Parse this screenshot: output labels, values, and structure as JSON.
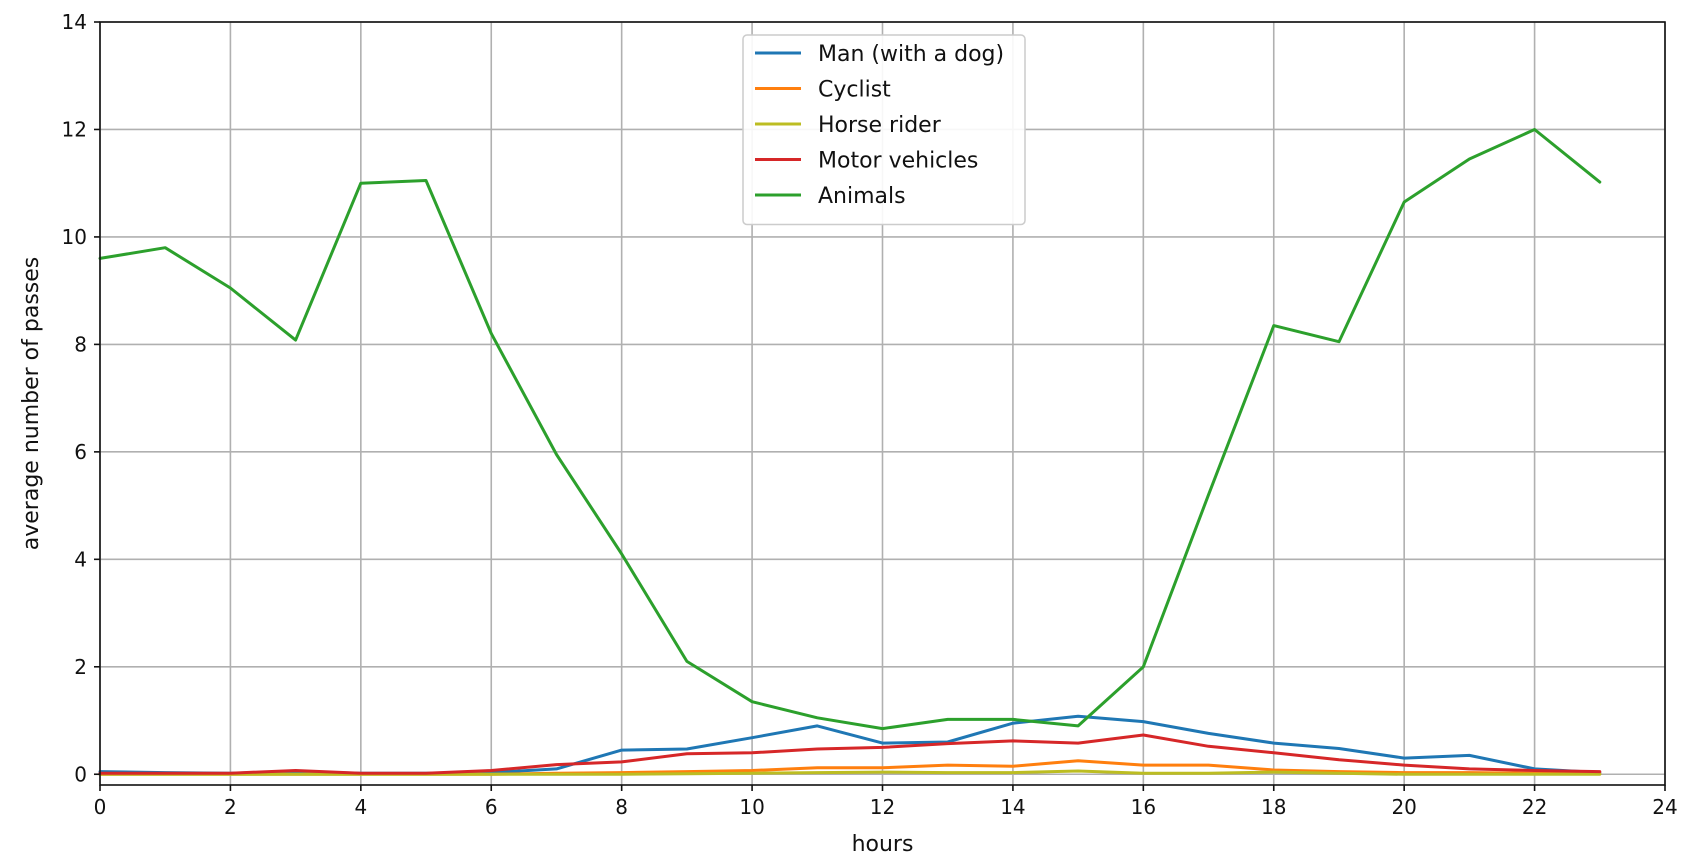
{
  "chart_data": {
    "type": "line",
    "title": "",
    "xlabel": "hours",
    "ylabel": "average number of passes",
    "xlim": [
      0,
      24
    ],
    "ylim": [
      -0.2,
      14
    ],
    "xticks": [
      0,
      2,
      4,
      6,
      8,
      10,
      12,
      14,
      16,
      18,
      20,
      22,
      24
    ],
    "yticks": [
      0,
      2,
      4,
      6,
      8,
      10,
      12,
      14
    ],
    "grid": true,
    "legend_position": "top-center",
    "x": [
      0,
      1,
      2,
      3,
      4,
      5,
      6,
      7,
      8,
      9,
      10,
      11,
      12,
      13,
      14,
      15,
      16,
      17,
      18,
      19,
      20,
      21,
      22,
      23
    ],
    "series": [
      {
        "name": "Man (with a dog)",
        "color": "#1f77b4",
        "values": [
          0.05,
          0.03,
          0.02,
          0.05,
          0.02,
          0.02,
          0.03,
          0.1,
          0.45,
          0.47,
          0.68,
          0.9,
          0.58,
          0.6,
          0.95,
          1.08,
          0.98,
          0.76,
          0.58,
          0.48,
          0.3,
          0.35,
          0.1,
          0.03
        ]
      },
      {
        "name": "Cyclist",
        "color": "#ff7f0e",
        "values": [
          0.0,
          0.0,
          0.0,
          0.0,
          0.0,
          0.0,
          0.0,
          0.02,
          0.03,
          0.05,
          0.07,
          0.12,
          0.12,
          0.17,
          0.15,
          0.25,
          0.17,
          0.17,
          0.08,
          0.05,
          0.03,
          0.03,
          0.02,
          0.01
        ]
      },
      {
        "name": "Horse rider",
        "color": "#bcbd22",
        "values": [
          0.0,
          0.0,
          0.0,
          0.0,
          0.0,
          0.0,
          0.0,
          0.0,
          0.0,
          0.01,
          0.02,
          0.03,
          0.04,
          0.03,
          0.03,
          0.06,
          0.02,
          0.02,
          0.04,
          0.02,
          0.0,
          0.0,
          0.0,
          0.0
        ]
      },
      {
        "name": "Motor vehicles",
        "color": "#d62728",
        "values": [
          0.02,
          0.02,
          0.02,
          0.07,
          0.02,
          0.02,
          0.07,
          0.18,
          0.23,
          0.38,
          0.4,
          0.47,
          0.5,
          0.57,
          0.62,
          0.58,
          0.73,
          0.52,
          0.4,
          0.27,
          0.17,
          0.1,
          0.07,
          0.05
        ]
      },
      {
        "name": "Animals",
        "color": "#2ca02c",
        "values": [
          9.6,
          9.8,
          9.05,
          8.08,
          11.0,
          11.05,
          8.2,
          5.95,
          4.1,
          2.1,
          1.35,
          1.05,
          0.85,
          1.02,
          1.02,
          0.9,
          2.0,
          5.2,
          8.35,
          8.05,
          10.65,
          11.45,
          12.0,
          11.02
        ]
      }
    ]
  }
}
